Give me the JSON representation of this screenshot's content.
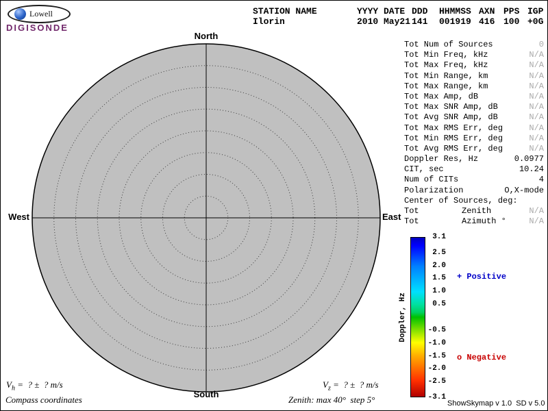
{
  "colors": {
    "positive": "#0000c8",
    "negative": "#c80000",
    "muted": "#a9a9a9",
    "plot-fill": "#c0c0c0",
    "brand": "#71286b"
  },
  "logo": {
    "brand": "Lowell",
    "product": "DIGISONDE"
  },
  "header": {
    "columns": [
      {
        "label": "STATION NAME",
        "value": "Ilorin"
      },
      {
        "label": "YYYY DATE",
        "value": "2010 May21"
      },
      {
        "label": "DDD",
        "value": "141"
      },
      {
        "label": "HHMMSS",
        "value": "001919"
      },
      {
        "label": "AXN",
        "value": "416"
      },
      {
        "label": "PPS",
        "value": "100"
      },
      {
        "label": "IGP",
        "value": "+0G"
      }
    ]
  },
  "plot": {
    "max_zenith_deg": 40,
    "step_deg": 5,
    "compass": {
      "north": "North",
      "south": "South",
      "east": "East",
      "west": "West"
    }
  },
  "stats": {
    "rows": [
      {
        "label": "Tot Num of Sources",
        "value": "0",
        "muted": true
      },
      {
        "label": "Tot Min Freq, kHz",
        "value": "N/A",
        "muted": true
      },
      {
        "label": "Tot Max Freq, kHz",
        "value": "N/A",
        "muted": true
      },
      {
        "label": "Tot Min Range, km",
        "value": "N/A",
        "muted": true
      },
      {
        "label": "Tot Max Range, km",
        "value": "N/A",
        "muted": true
      },
      {
        "label": "Tot Max Amp, dB",
        "value": "N/A",
        "muted": true
      },
      {
        "label": "Tot Max SNR Amp, dB",
        "value": "N/A",
        "muted": true
      },
      {
        "label": "Tot Avg SNR Amp, dB",
        "value": "N/A",
        "muted": true
      },
      {
        "label": "Tot Max RMS Err, deg",
        "value": "N/A",
        "muted": true
      },
      {
        "label": "Tot Min RMS Err, deg",
        "value": "N/A",
        "muted": true
      },
      {
        "label": "Tot Avg RMS Err, deg",
        "value": "N/A",
        "muted": true
      },
      {
        "label": "Doppler Res, Hz",
        "value": "0.0977",
        "muted": false
      },
      {
        "label": "CIT, sec",
        "value": "10.24",
        "muted": false
      },
      {
        "label": "Num of CITs",
        "value": "4",
        "muted": false
      },
      {
        "label": "Polarization",
        "value": "O,X-mode",
        "muted": false
      },
      {
        "label": "Center of Sources, deg:",
        "value": "",
        "muted": false
      },
      {
        "label": "Tot",
        "mid": "Zenith",
        "value": "N/A",
        "muted": true
      },
      {
        "label": "Tot",
        "mid": "Azimuth °",
        "value": "N/A",
        "muted": true
      }
    ]
  },
  "colorbar": {
    "axis_label": "Doppler, Hz",
    "max": 3.1,
    "min": -3.1,
    "ticks": [
      {
        "value": 3.1,
        "label": "3.1"
      },
      {
        "value": 2.5,
        "label": "2.5"
      },
      {
        "value": 2.0,
        "label": "2.0"
      },
      {
        "value": 1.5,
        "label": "1.5"
      },
      {
        "value": 1.0,
        "label": "1.0"
      },
      {
        "value": 0.5,
        "label": "0.5"
      },
      {
        "value": -0.5,
        "label": "-0.5"
      },
      {
        "value": -1.0,
        "label": "-1.0"
      },
      {
        "value": -1.5,
        "label": "-1.5"
      },
      {
        "value": -2.0,
        "label": "-2.0"
      },
      {
        "value": -2.5,
        "label": "-2.5"
      },
      {
        "value": -3.1,
        "label": "-3.1"
      }
    ],
    "legend": [
      {
        "symbol": "+",
        "label": "Positive"
      },
      {
        "symbol": "o",
        "label": "Negative"
      }
    ]
  },
  "footer": {
    "vh": {
      "symbol": "V",
      "sub": "h",
      "rest": " =  ? ±  ? m/s"
    },
    "vz": {
      "symbol": "V",
      "sub": "z",
      "rest": " =  ? ±  ? m/s"
    },
    "left_note": "Compass coordinates",
    "right_note": "Zenith: max 40°  step 5°",
    "version": "ShowSkymap v 1.0  SD v 5.0"
  }
}
